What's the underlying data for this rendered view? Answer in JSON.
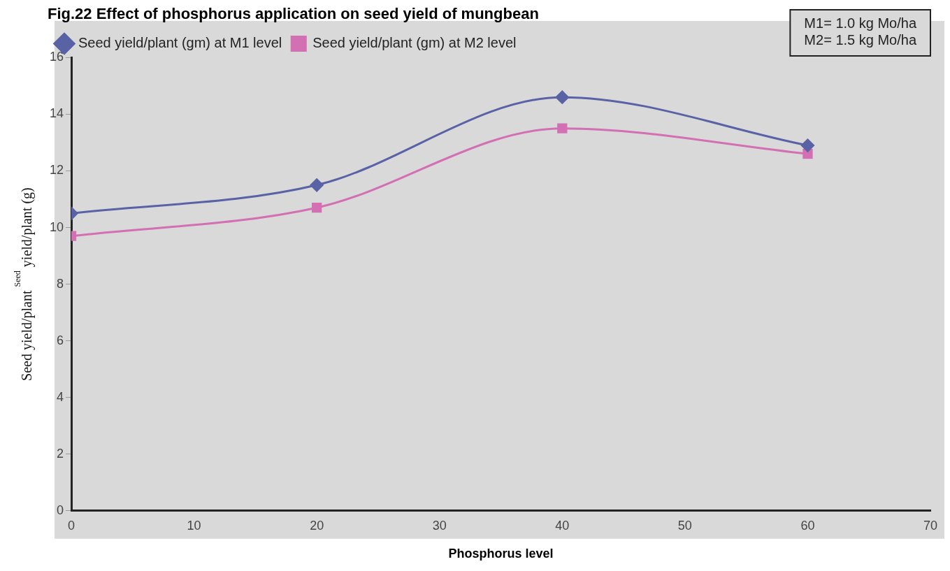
{
  "chart_data": {
    "type": "line",
    "title": "Fig.22 Effect of phosphorus application on seed yield of mungbean",
    "xlabel": "Phosphorus level",
    "ylabel": "Seed yield/plant $^{Seed}$ yield/plant (g)",
    "x": [
      0,
      20,
      40,
      60
    ],
    "series": [
      {
        "name": "Seed yield/plant (gm) at M1 level",
        "color": "#5a62a6",
        "marker": "diamond",
        "values": [
          10.5,
          11.5,
          14.6,
          12.9
        ]
      },
      {
        "name": "Seed yield/plant (gm) at M2 level",
        "color": "#d36fb3",
        "marker": "square",
        "values": [
          9.7,
          10.7,
          13.5,
          12.6
        ]
      }
    ],
    "xlim": [
      0,
      70
    ],
    "xticks": [
      0,
      10,
      20,
      30,
      40,
      50,
      60,
      70
    ],
    "ylim": [
      0,
      16
    ],
    "yticks": [
      0,
      2,
      4,
      6,
      8,
      10,
      12,
      14,
      16
    ],
    "grid": false,
    "legend": "top",
    "line_style": "solid",
    "annotations": [
      "M1= 1.0 kg Mo/ha",
      "M2= 1.5 kg Mo/ha"
    ]
  }
}
